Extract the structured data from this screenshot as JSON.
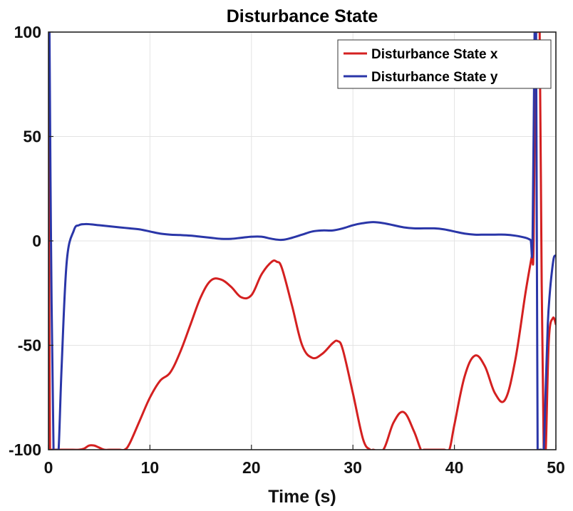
{
  "chart_data": {
    "type": "line",
    "title": "Disturbance State",
    "xlabel": "Time (s)",
    "ylabel": "",
    "xlim": [
      0,
      50
    ],
    "ylim": [
      -100,
      100
    ],
    "xticks": [
      0,
      10,
      20,
      30,
      40,
      50
    ],
    "yticks": [
      -100,
      -50,
      0,
      50,
      100
    ],
    "xtick_labels": [
      "0",
      "10",
      "20",
      "30",
      "40",
      "50"
    ],
    "ytick_labels": [
      "-100",
      "-50",
      "0",
      "50",
      "100"
    ],
    "grid": true,
    "legend_position": "top-right",
    "series": [
      {
        "name": "Disturbance State x",
        "color": "#d42020",
        "x": [
          0,
          0.05,
          0.15,
          0.3,
          1,
          2,
          3,
          3.5,
          4,
          4.5,
          5,
          5.5,
          6,
          6.5,
          7,
          7.5,
          8,
          9,
          10,
          11,
          12,
          13,
          14,
          15,
          16,
          17,
          18,
          19,
          20,
          21,
          22,
          22.5,
          23,
          24,
          25,
          26,
          27,
          28,
          28.5,
          29,
          30,
          31,
          31.7,
          32,
          33,
          34,
          35,
          36,
          36.7,
          37,
          38,
          39,
          39.5,
          40,
          41,
          42,
          43,
          44,
          45,
          46,
          47,
          47.6,
          47.8,
          48,
          48.2,
          48.4,
          48.6,
          48.8,
          49,
          49.3,
          49.7,
          50
        ],
        "y": [
          100,
          0,
          -100,
          -100,
          -100,
          -100,
          -100,
          -99.5,
          -98,
          -98,
          -99,
          -100,
          -100,
          -100,
          -100,
          -100,
          -97,
          -86,
          -75,
          -67,
          -63,
          -53,
          -40,
          -27,
          -19,
          -18.5,
          -22,
          -27,
          -26,
          -16,
          -10,
          -10,
          -13,
          -31,
          -50,
          -56,
          -54,
          -49,
          -48,
          -52,
          -73,
          -95,
          -100,
          -100,
          -100,
          -87,
          -82,
          -91,
          -100,
          -100,
          -100,
          -100,
          -100,
          -88,
          -65,
          -55,
          -60,
          -73,
          -76,
          -57,
          -25,
          -8,
          -2,
          100,
          100,
          100,
          -20,
          -100,
          -100,
          -48,
          -37,
          -40
        ]
      },
      {
        "name": "Disturbance State y",
        "color": "#2a36a8",
        "x": [
          0,
          0.1,
          0.25,
          0.5,
          0.8,
          1,
          1.3,
          1.8,
          2.5,
          3,
          3.5,
          4,
          5,
          6,
          7,
          8,
          9,
          10,
          11,
          12,
          13,
          14,
          15,
          16,
          17,
          18,
          19,
          20,
          21,
          22,
          23,
          24,
          25,
          26,
          27,
          28,
          29,
          30,
          31,
          32,
          33,
          34,
          35,
          36,
          37,
          38,
          39,
          40,
          41,
          42,
          43,
          44,
          45,
          46,
          47,
          47.5,
          47.7,
          47.9,
          48.05,
          48.2,
          48.4,
          48.6,
          48.8,
          49.0,
          49.2,
          49.4,
          49.6,
          49.8,
          50
        ],
        "y": [
          100,
          100,
          0,
          -100,
          -100,
          -100,
          -60,
          -10,
          5,
          7.5,
          8,
          8,
          7.5,
          7,
          6.5,
          6,
          5.5,
          4.5,
          3.5,
          3,
          2.8,
          2.5,
          2,
          1.5,
          1,
          1,
          1.5,
          2,
          2,
          1,
          0.5,
          1.5,
          3,
          4.5,
          5,
          5,
          6,
          7.5,
          8.5,
          9,
          8.5,
          7.5,
          6.5,
          6,
          6,
          6,
          5.5,
          4.5,
          3.5,
          3,
          3,
          3,
          3,
          2.5,
          1.5,
          0.5,
          0,
          100,
          100,
          -100,
          -100,
          -100,
          -100,
          -70,
          -40,
          -25,
          -15,
          -8,
          -7
        ]
      }
    ]
  }
}
